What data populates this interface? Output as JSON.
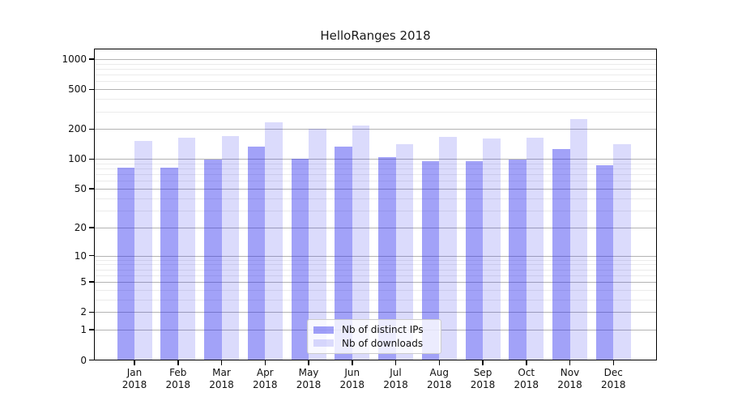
{
  "title": "HelloRanges 2018",
  "chart_data": {
    "type": "bar",
    "title": "HelloRanges 2018",
    "categories": [
      "Jan 2018",
      "Feb 2018",
      "Mar 2018",
      "Apr 2018",
      "May 2018",
      "Jun 2018",
      "Jul 2018",
      "Aug 2018",
      "Sep 2018",
      "Oct 2018",
      "Nov 2018",
      "Dec 2018"
    ],
    "series": [
      {
        "name": "Nb of distinct IPs",
        "color": "rgba(34,34,238,0.42)",
        "values": [
          82,
          82,
          98,
          134,
          100,
          134,
          105,
          95,
          96,
          98,
          125,
          87
        ]
      },
      {
        "name": "Nb of downloads",
        "color": "rgba(34,34,238,0.16)",
        "values": [
          152,
          164,
          169,
          236,
          202,
          219,
          141,
          168,
          161,
          164,
          251,
          142
        ]
      }
    ],
    "yscale": "log10(1+v)",
    "y_ticks": [
      0,
      1,
      2,
      5,
      10,
      20,
      50,
      100,
      200,
      500,
      1000
    ],
    "y_minor_ticks": [
      3,
      4,
      6,
      7,
      8,
      9,
      30,
      40,
      60,
      70,
      80,
      90,
      300,
      400,
      600,
      700,
      800,
      900
    ],
    "ylim": [
      0,
      1275
    ],
    "xlabel": "",
    "ylabel": "",
    "grid": "horizontal",
    "legend_position": "lower center"
  },
  "colors": {
    "bar_distinct_ips": "rgba(34,34,238,0.42)",
    "bar_downloads": "rgba(34,34,238,0.16)",
    "grid_major": "#b3b3b3",
    "grid_minor": "#ebebeb",
    "spine": "#000000",
    "text": "#111111",
    "legend_border": "#cccccc"
  },
  "legend": {
    "items": [
      {
        "label": "Nb of distinct IPs"
      },
      {
        "label": "Nb of downloads"
      }
    ]
  }
}
